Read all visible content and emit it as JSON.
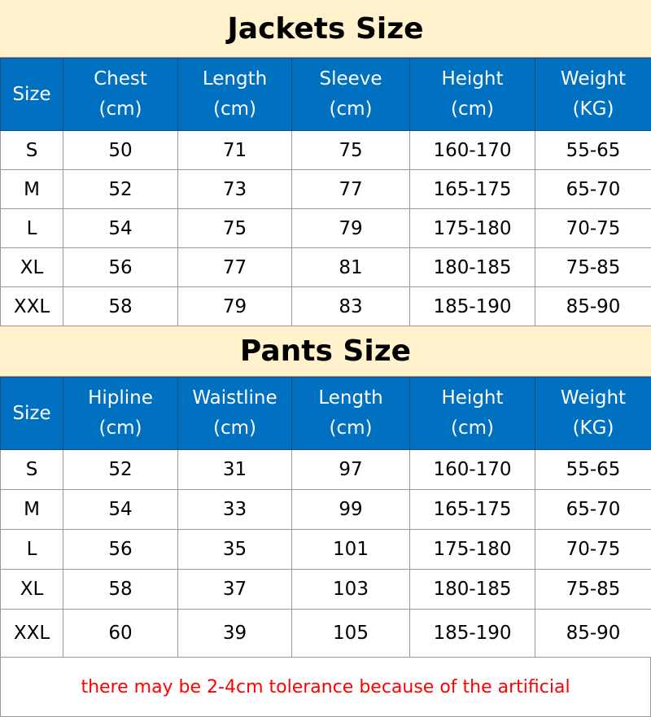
{
  "jackets": {
    "title": "Jackets Size",
    "headers": [
      [
        "Size",
        ""
      ],
      [
        "Chest",
        "(cm)"
      ],
      [
        "Length",
        "(cm)"
      ],
      [
        "Sleeve",
        "(cm)"
      ],
      [
        "Height",
        "(cm)"
      ],
      [
        "Weight",
        "(KG)"
      ]
    ],
    "rows": [
      [
        "S",
        "50",
        "71",
        "75",
        "160-170",
        "55-65"
      ],
      [
        "M",
        "52",
        "73",
        "77",
        "165-175",
        "65-70"
      ],
      [
        "L",
        "54",
        "75",
        "79",
        "175-180",
        "70-75"
      ],
      [
        "XL",
        "56",
        "77",
        "81",
        "180-185",
        "75-85"
      ],
      [
        "XXL",
        "58",
        "79",
        "83",
        "185-190",
        "85-90"
      ]
    ]
  },
  "pants": {
    "title": "Pants Size",
    "headers": [
      [
        "Size",
        ""
      ],
      [
        "Hipline",
        "(cm)"
      ],
      [
        "Waistline",
        "(cm)"
      ],
      [
        "Length",
        "(cm)"
      ],
      [
        "Height",
        "(cm)"
      ],
      [
        "Weight",
        "(KG)"
      ]
    ],
    "rows": [
      [
        "S",
        "52",
        "31",
        "97",
        "160-170",
        "55-65"
      ],
      [
        "M",
        "54",
        "33",
        "99",
        "165-175",
        "65-70"
      ],
      [
        "L",
        "56",
        "35",
        "101",
        "175-180",
        "70-75"
      ],
      [
        "XL",
        "58",
        "37",
        "103",
        "180-185",
        "75-85"
      ],
      [
        "XXL",
        "60",
        "39",
        "105",
        "185-190",
        "85-90"
      ]
    ]
  },
  "note": "there may be 2-4cm tolerance because of the artificial",
  "colors": {
    "title_bg": "#FFF2CC",
    "header_bg": "#0070C0",
    "note": "#FF0000"
  }
}
